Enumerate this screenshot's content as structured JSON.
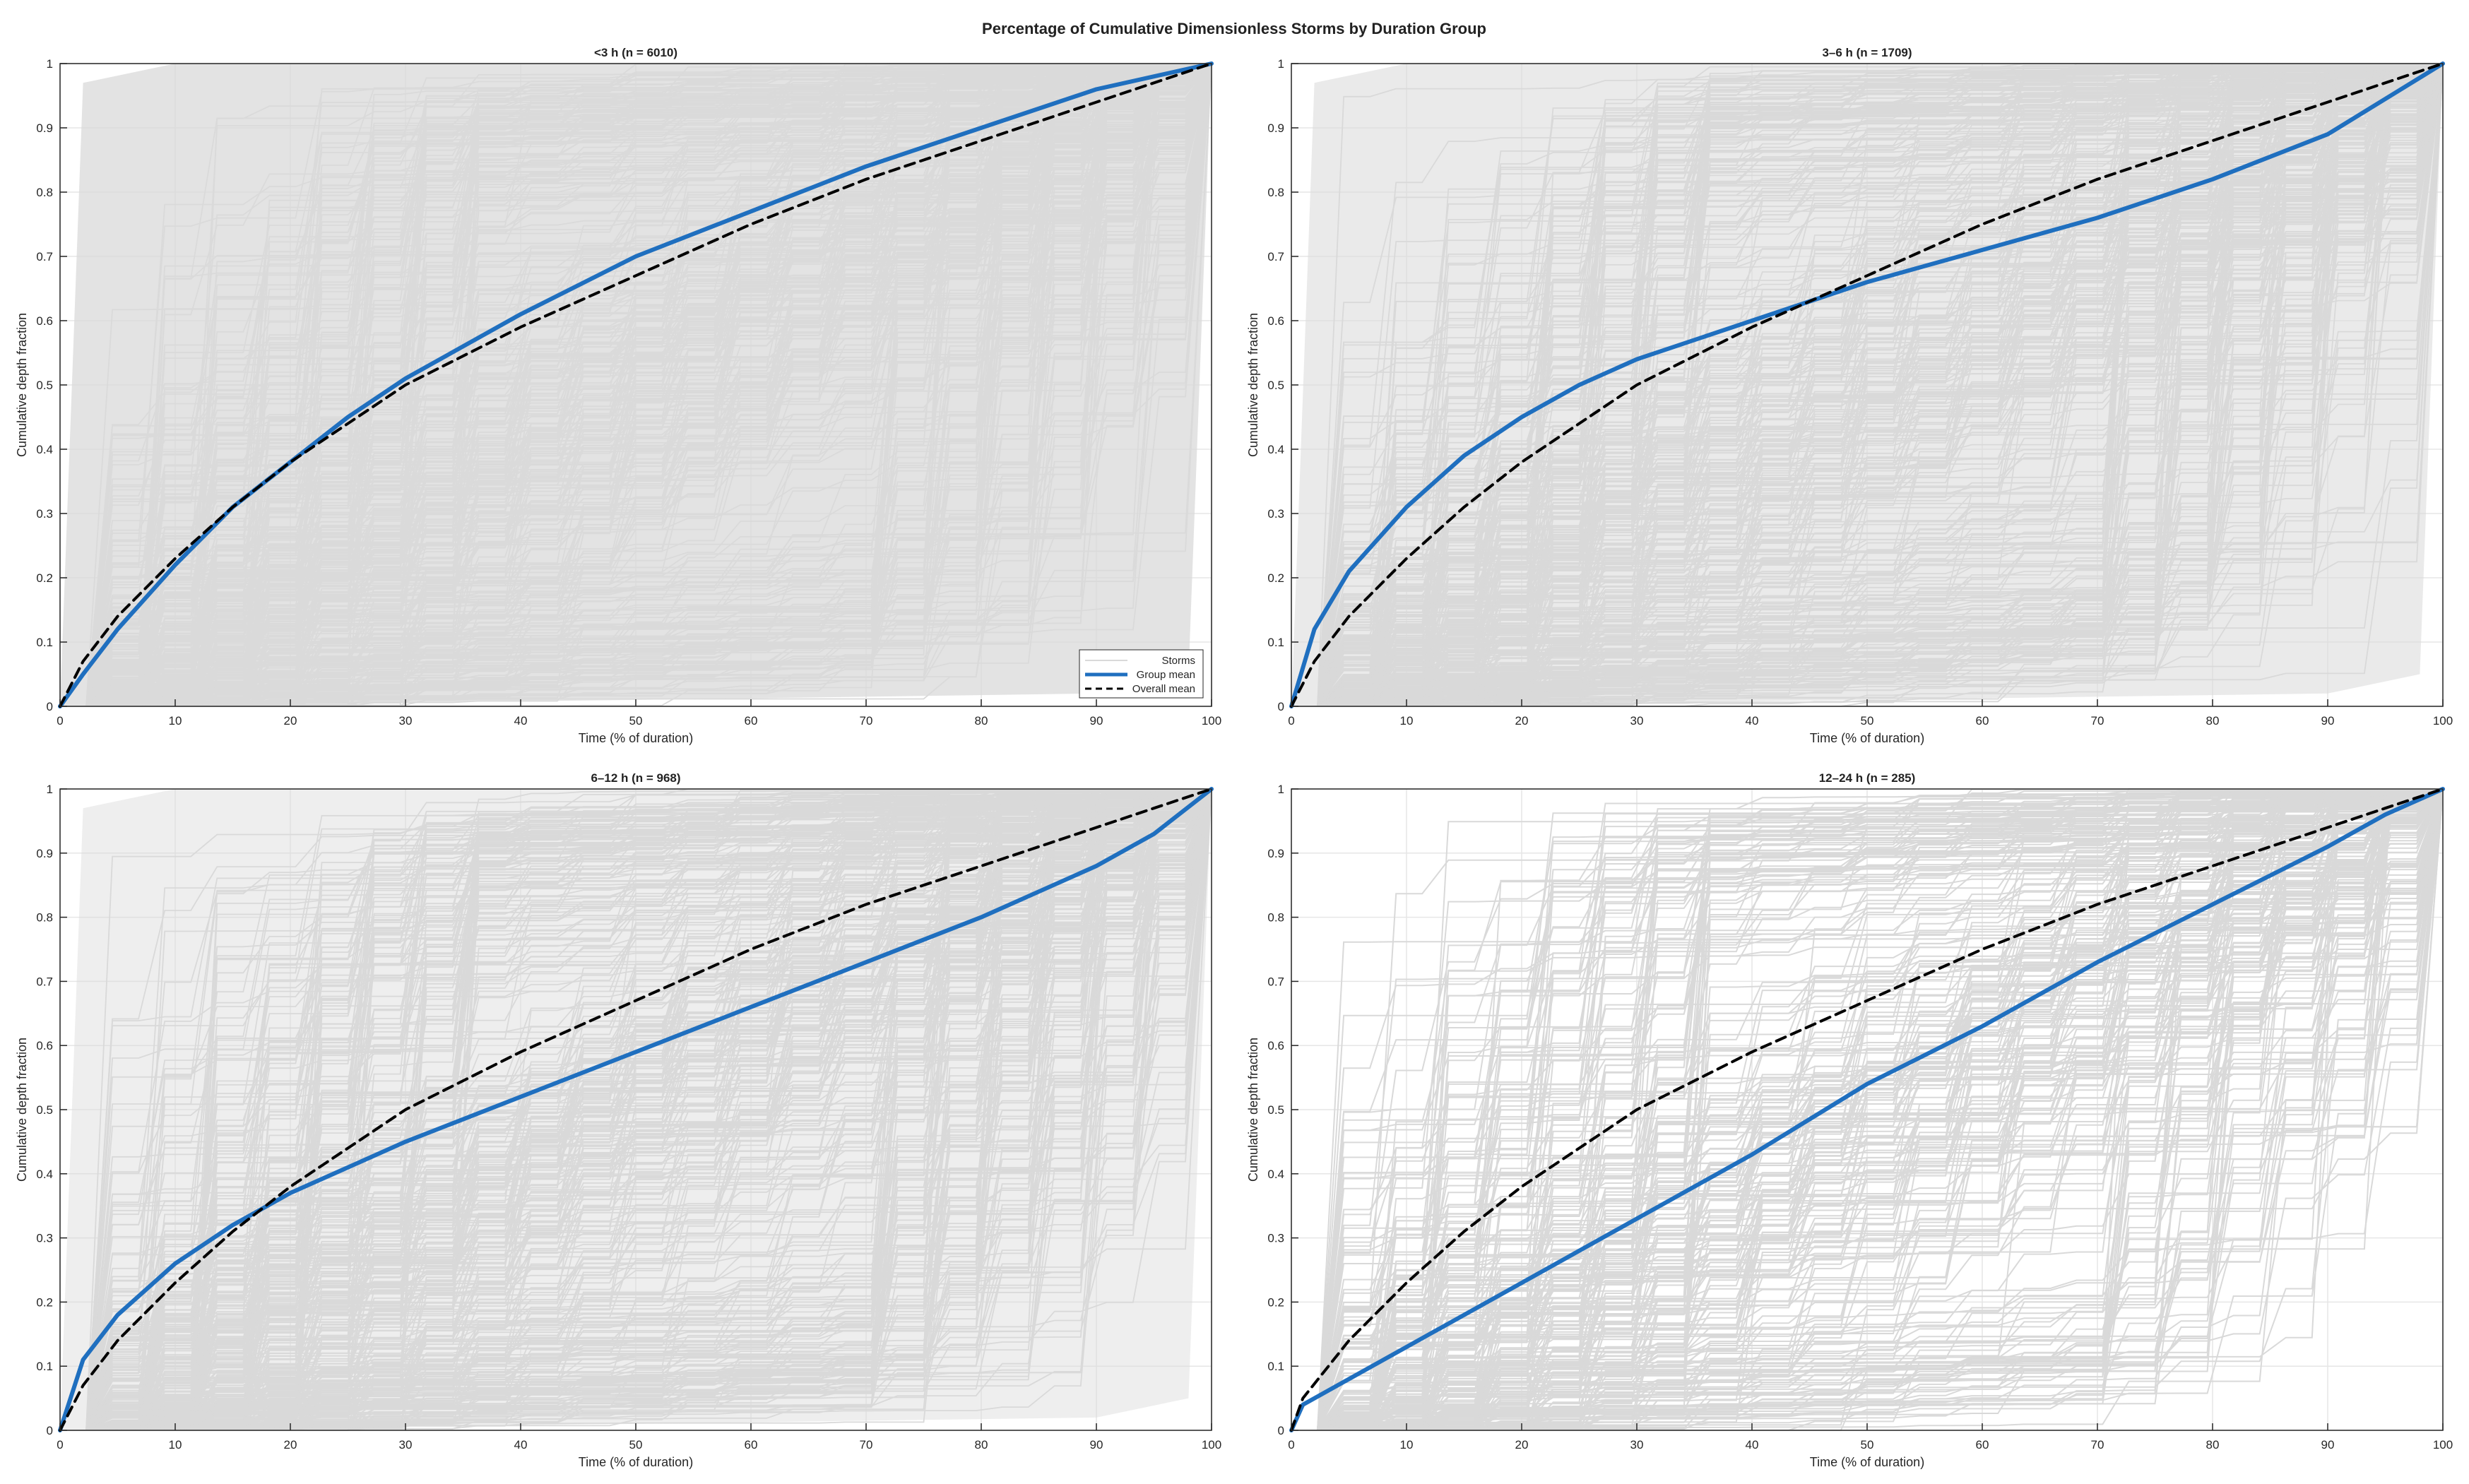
{
  "figure": {
    "title": "Percentage of Cumulative Dimensionless Storms by Duration Group"
  },
  "colors": {
    "storm_line": "#d9d9d9",
    "group_mean": "#1f6fbf",
    "overall_mean": "#000000",
    "grid": "#e6e6e6",
    "axis": "#262626"
  },
  "legend": {
    "entries": [
      "Storms",
      "Group mean",
      "Overall mean"
    ]
  },
  "chart_data": [
    {
      "type": "line",
      "title": "<3 h (n = 6010)",
      "xlabel": "Time (% of duration)",
      "ylabel": "Cumulative depth fraction",
      "xlim": [
        0,
        100
      ],
      "ylim": [
        0,
        1
      ],
      "xticks": [
        "0",
        "10",
        "20",
        "30",
        "40",
        "50",
        "60",
        "70",
        "80",
        "90",
        "100"
      ],
      "yticks": [
        "0",
        "0.1",
        "0.2",
        "0.3",
        "0.4",
        "0.5",
        "0.6",
        "0.7",
        "0.8",
        "0.9",
        "1"
      ],
      "grid": true,
      "legend_location": "bottom-right",
      "storm_count": 6010,
      "x": [
        0,
        2,
        5,
        10,
        15,
        20,
        25,
        30,
        40,
        50,
        60,
        70,
        80,
        90,
        100
      ],
      "series": [
        {
          "name": "Group mean",
          "values": [
            0,
            0.05,
            0.12,
            0.22,
            0.31,
            0.38,
            0.45,
            0.51,
            0.61,
            0.7,
            0.77,
            0.84,
            0.9,
            0.96,
            1.0
          ]
        },
        {
          "name": "Overall mean",
          "values": [
            0,
            0.07,
            0.14,
            0.23,
            0.31,
            0.38,
            0.44,
            0.5,
            0.59,
            0.67,
            0.75,
            0.82,
            0.88,
            0.94,
            1.0
          ]
        }
      ]
    },
    {
      "type": "line",
      "title": "3–6 h (n = 1709)",
      "xlabel": "Time (% of duration)",
      "ylabel": "Cumulative depth fraction",
      "xlim": [
        0,
        100
      ],
      "ylim": [
        0,
        1
      ],
      "xticks": [
        "0",
        "10",
        "20",
        "30",
        "40",
        "50",
        "60",
        "70",
        "80",
        "90",
        "100"
      ],
      "yticks": [
        "0",
        "0.1",
        "0.2",
        "0.3",
        "0.4",
        "0.5",
        "0.6",
        "0.7",
        "0.8",
        "0.9",
        "1"
      ],
      "grid": true,
      "storm_count": 1709,
      "x": [
        0,
        2,
        5,
        10,
        15,
        20,
        25,
        30,
        40,
        50,
        60,
        70,
        80,
        90,
        100
      ],
      "series": [
        {
          "name": "Group mean",
          "values": [
            0,
            0.12,
            0.21,
            0.31,
            0.39,
            0.45,
            0.5,
            0.54,
            0.6,
            0.66,
            0.71,
            0.76,
            0.82,
            0.89,
            1.0
          ]
        },
        {
          "name": "Overall mean",
          "values": [
            0,
            0.07,
            0.14,
            0.23,
            0.31,
            0.38,
            0.44,
            0.5,
            0.59,
            0.67,
            0.75,
            0.82,
            0.88,
            0.94,
            1.0
          ]
        }
      ]
    },
    {
      "type": "line",
      "title": "6–12 h (n = 968)",
      "xlabel": "Time (% of duration)",
      "ylabel": "Cumulative depth fraction",
      "xlim": [
        0,
        100
      ],
      "ylim": [
        0,
        1
      ],
      "xticks": [
        "0",
        "10",
        "20",
        "30",
        "40",
        "50",
        "60",
        "70",
        "80",
        "90",
        "100"
      ],
      "yticks": [
        "0",
        "0.1",
        "0.2",
        "0.3",
        "0.4",
        "0.5",
        "0.6",
        "0.7",
        "0.8",
        "0.9",
        "1"
      ],
      "grid": true,
      "storm_count": 968,
      "x": [
        0,
        2,
        5,
        10,
        15,
        20,
        25,
        30,
        40,
        50,
        60,
        70,
        80,
        90,
        95,
        100
      ],
      "series": [
        {
          "name": "Group mean",
          "values": [
            0,
            0.11,
            0.18,
            0.26,
            0.32,
            0.37,
            0.41,
            0.45,
            0.52,
            0.59,
            0.66,
            0.73,
            0.8,
            0.88,
            0.93,
            1.0
          ]
        },
        {
          "name": "Overall mean",
          "values": [
            0,
            0.07,
            0.14,
            0.23,
            0.31,
            0.38,
            0.44,
            0.5,
            0.59,
            0.67,
            0.75,
            0.82,
            0.88,
            0.94,
            0.97,
            1.0
          ]
        }
      ]
    },
    {
      "type": "line",
      "title": "12–24 h (n = 285)",
      "xlabel": "Time (% of duration)",
      "ylabel": "Cumulative depth fraction",
      "xlim": [
        0,
        100
      ],
      "ylim": [
        0,
        1
      ],
      "xticks": [
        "0",
        "10",
        "20",
        "30",
        "40",
        "50",
        "60",
        "70",
        "80",
        "90",
        "100"
      ],
      "yticks": [
        "0",
        "0.1",
        "0.2",
        "0.3",
        "0.4",
        "0.5",
        "0.6",
        "0.7",
        "0.8",
        "0.9",
        "1"
      ],
      "grid": true,
      "storm_count": 285,
      "x": [
        0,
        1,
        5,
        10,
        15,
        20,
        25,
        30,
        40,
        50,
        60,
        70,
        80,
        90,
        95,
        100
      ],
      "series": [
        {
          "name": "Group mean",
          "values": [
            0,
            0.04,
            0.08,
            0.13,
            0.18,
            0.23,
            0.28,
            0.33,
            0.43,
            0.54,
            0.63,
            0.73,
            0.82,
            0.91,
            0.96,
            1.0
          ]
        },
        {
          "name": "Overall mean",
          "values": [
            0,
            0.05,
            0.14,
            0.23,
            0.31,
            0.38,
            0.44,
            0.5,
            0.59,
            0.67,
            0.75,
            0.82,
            0.88,
            0.94,
            0.97,
            1.0
          ]
        }
      ]
    }
  ]
}
